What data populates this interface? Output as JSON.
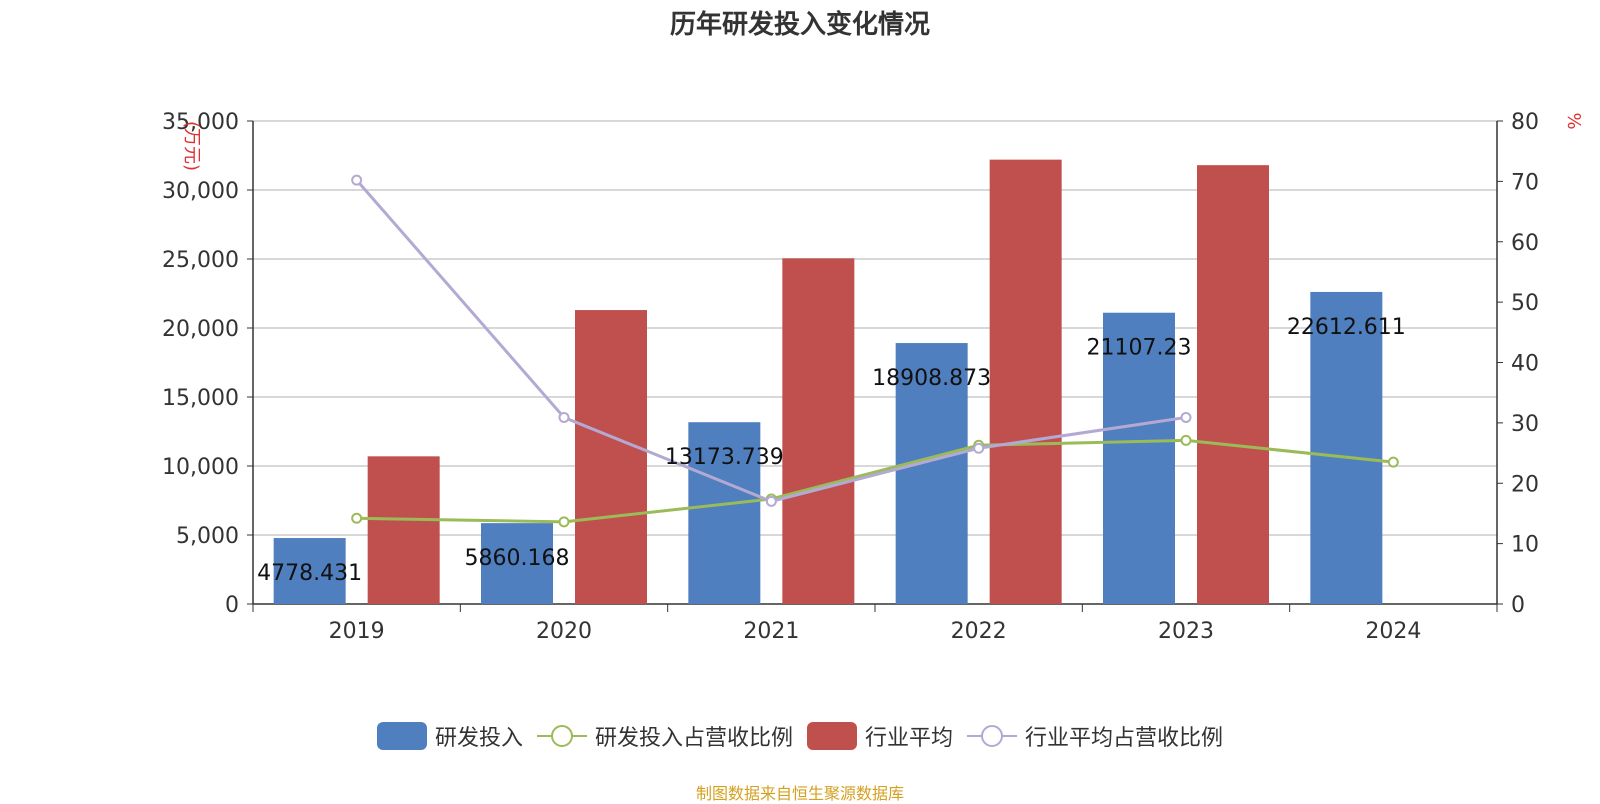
{
  "chart_data": {
    "type": "bar",
    "title": "历年研发投入变化情况",
    "categories": [
      "2019",
      "2020",
      "2021",
      "2022",
      "2023",
      "2024"
    ],
    "y_left": {
      "unit_label": "(万元)",
      "ylim": [
        0,
        35000
      ],
      "ticks": [
        "0",
        "5,000",
        "10,000",
        "15,000",
        "20,000",
        "25,000",
        "30,000",
        "35,000"
      ]
    },
    "y_right": {
      "unit_label": "%",
      "ylim": [
        0,
        80
      ],
      "ticks": [
        "0",
        "10",
        "20",
        "30",
        "40",
        "50",
        "60",
        "70",
        "80"
      ]
    },
    "series": [
      {
        "name": "研发投入",
        "kind": "bar",
        "axis": "left",
        "color": "#4f7fbf",
        "values": [
          4778.431,
          5860.168,
          13173.739,
          18908.873,
          21107.23,
          22612.611
        ],
        "labels": [
          "4778.431",
          "5860.168",
          "13173.739",
          "18908.873",
          "21107.23",
          "22612.611"
        ]
      },
      {
        "name": "研发投入占营收比例",
        "kind": "line",
        "axis": "right",
        "color": "#9bbb59",
        "values": [
          14.2,
          13.6,
          17.4,
          26.3,
          27.1,
          23.5
        ]
      },
      {
        "name": "行业平均",
        "kind": "bar",
        "axis": "left",
        "color": "#c0504d",
        "values": [
          10700,
          21300,
          25050,
          32200,
          31800,
          null
        ]
      },
      {
        "name": "行业平均占营收比例",
        "kind": "line",
        "axis": "right",
        "color": "#b3a9d3",
        "values": [
          70.2,
          30.9,
          17.0,
          25.8,
          30.9,
          null
        ]
      }
    ],
    "grid": true,
    "legend_position": "bottom"
  },
  "source_text": "制图数据来自恒生聚源数据库",
  "colors": {
    "axis": "#333333",
    "grid": "#cccccc",
    "unit": "#e03030",
    "source": "#d4a020"
  }
}
